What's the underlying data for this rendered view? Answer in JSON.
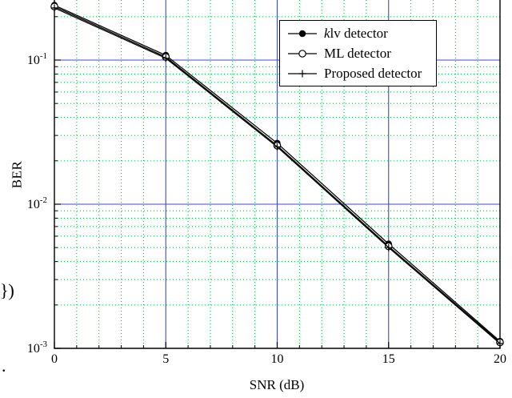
{
  "stray_text": {
    "brace": "})",
    "dot": "."
  },
  "chart_data": {
    "type": "line",
    "title": "",
    "xlabel": "SNR (dB)",
    "ylabel": "BER",
    "x": [
      0,
      5,
      10,
      15,
      20
    ],
    "series": [
      {
        "name_segments": [
          {
            "text": "k",
            "italic": true
          },
          {
            "text": "lv detector",
            "italic": false
          }
        ],
        "marker": "filled-circle",
        "color": "#000000",
        "values": [
          0.24,
          0.108,
          0.0265,
          0.0053,
          0.00112
        ]
      },
      {
        "name_segments": [
          {
            "text": "ML detector",
            "italic": false
          }
        ],
        "marker": "open-circle",
        "color": "#000000",
        "values": [
          0.235,
          0.105,
          0.0255,
          0.0051,
          0.0011
        ]
      },
      {
        "name_segments": [
          {
            "text": "Proposed detector",
            "italic": false
          }
        ],
        "marker": "plus",
        "color": "#000000",
        "values": [
          0.23,
          0.103,
          0.025,
          0.005,
          0.00108
        ]
      }
    ],
    "xlim": [
      0,
      20
    ],
    "ylim_log10": [
      -3,
      -0.58
    ],
    "x_major_ticks": [
      0,
      5,
      10,
      15,
      20
    ],
    "x_minor_step": 1,
    "y_tick_exponents": [
      -1,
      -2,
      -3
    ],
    "y_minor_mantissas": [
      2,
      3,
      4,
      5,
      6,
      7,
      8,
      9
    ],
    "grid": {
      "major_on": true,
      "minor_on": true,
      "major_color": "#4048cc",
      "minor_color": "#00b840",
      "axis_color": "#000000"
    },
    "legend_position": "top-right"
  }
}
